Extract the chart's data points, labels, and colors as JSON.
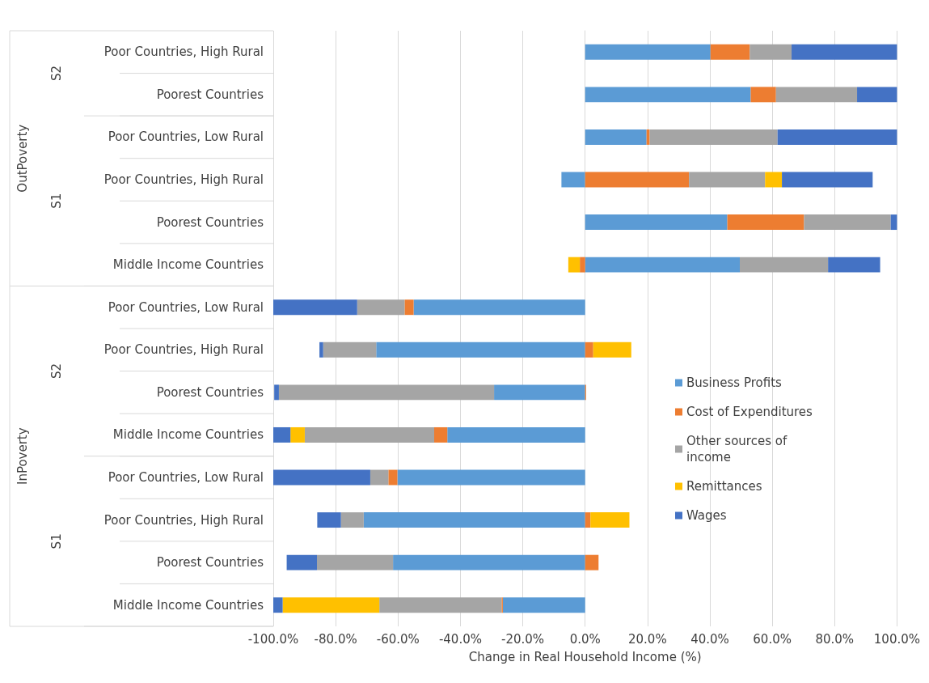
{
  "chart_data": {
    "type": "bar",
    "orientation": "horizontal",
    "stacked": true,
    "xlabel": "Change in Real Household Income (%)",
    "categories": [
      "Poor Countries, High Rural",
      "Poorest Countries",
      "Poor Countries, Low Rural",
      "Poor Countries, High Rural",
      "Poorest Countries",
      "Middle Income Countries",
      "Poor Countries, Low Rural",
      "Poor Countries, High Rural",
      "Poorest Countries",
      "Middle Income Countries",
      "Poor Countries, Low Rural",
      "Poor Countries, High Rural",
      "Poorest Countries",
      "Middle Income Countries"
    ],
    "annotations": [
      "OutPoverty",
      "InPoverty",
      "S2",
      "S1",
      "S2",
      "S1"
    ],
    "series": [
      {
        "name": "Business Profits",
        "color": "#5b9bd5",
        "values": [
          40.2,
          53.1,
          19.7,
          -7.6,
          45.6,
          49.6,
          -55.0,
          -67.0,
          -29.2,
          -44.2,
          -60.2,
          -71.0,
          -61.6,
          -26.4
        ]
      },
      {
        "name": "Cost of Expenditures",
        "color": "#ed7d31",
        "values": [
          12.6,
          8.1,
          1.0,
          33.3,
          24.6,
          -1.7,
          -2.9,
          2.6,
          0.3,
          -4.2,
          -2.9,
          1.7,
          4.3,
          -0.4
        ]
      },
      {
        "name": "Other sources of income",
        "color": "#a5a5a5",
        "values": [
          13.4,
          26.0,
          41.0,
          24.4,
          27.8,
          28.3,
          -15.2,
          -17.0,
          -69.0,
          -41.5,
          -5.8,
          -7.3,
          -24.4,
          -39.2
        ]
      },
      {
        "name": "Remittances",
        "color": "#ffc000",
        "values": [
          0,
          0,
          0,
          5.4,
          0,
          -3.7,
          0,
          12.2,
          0,
          -4.6,
          0,
          12.5,
          0,
          -31.0
        ]
      },
      {
        "name": "Wages",
        "color": "#4472c4",
        "values": [
          33.8,
          12.9,
          38.3,
          29.1,
          2.0,
          16.7,
          -26.9,
          -1.2,
          -1.5,
          -5.5,
          -31.1,
          -7.6,
          -9.7,
          -3.0
        ]
      }
    ],
    "xlim": [
      -100,
      100
    ],
    "xticks": [
      {
        "value": -100,
        "label": "-100.0%"
      },
      {
        "value": -80,
        "label": "-80.0%"
      },
      {
        "value": -60,
        "label": "-60.0%"
      },
      {
        "value": -40,
        "label": "-40.0%"
      },
      {
        "value": -20,
        "label": "-20.0%"
      },
      {
        "value": 0,
        "label": "0.0%"
      },
      {
        "value": 20,
        "label": "20.0%"
      },
      {
        "value": 40,
        "label": "40.0%"
      },
      {
        "value": 60,
        "label": "60.0%"
      },
      {
        "value": 80,
        "label": "80.0%"
      },
      {
        "value": 100,
        "label": "100.0%"
      }
    ],
    "grid": "x",
    "legend": "right"
  }
}
